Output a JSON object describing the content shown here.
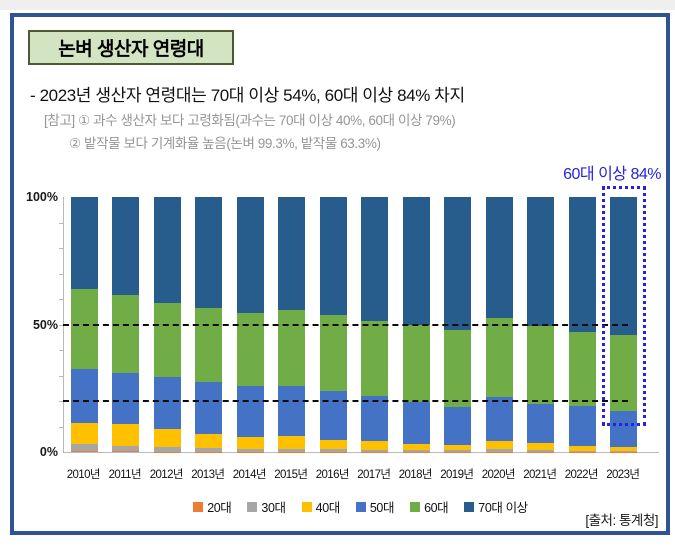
{
  "header": {
    "title": "논벼 생산자 연령대",
    "bullet": "- 2023년 생산자 연령대는 70대 이상 54%, 60대 이상 84% 차지",
    "note1": "[참고] ① 과수 생산자 보다 고령화됨(과수는 70대 이상 40%, 60대 이상 79%)",
    "note2": "② 밭작물 보다 기계화율 높음(논벼 99.3%, 밭작물 63.3%)"
  },
  "annotation": {
    "label": "60대 이상 84%",
    "color": "#2323E0"
  },
  "source": "[출처: 통계청]",
  "colors": {
    "frame_border": "#2F5496",
    "title_fill": "#D3E4C2",
    "title_border": "#4A5A33",
    "highlight_box": "#2323E6"
  },
  "chart_data": {
    "type": "bar",
    "stacked": true,
    "title": "",
    "xlabel": "",
    "ylabel": "",
    "ylim": [
      0,
      100
    ],
    "yticks": [
      {
        "label": "100%",
        "value": 100
      },
      {
        "label": "50%",
        "value": 50
      },
      {
        "label": "0%",
        "value": 0
      }
    ],
    "reference_lines_dashed": [
      50,
      20
    ],
    "legend_position": "bottom",
    "highlight": {
      "category": "2023년",
      "note": "60대 이상 84%"
    },
    "categories": [
      "2010년",
      "2011년",
      "2012년",
      "2013년",
      "2014년",
      "2015년",
      "2016년",
      "2017년",
      "2018년",
      "2019년",
      "2020년",
      "2021년",
      "2022년",
      "2023년"
    ],
    "series": [
      {
        "name": "20대",
        "color": "#ED7D31",
        "values": [
          0.4,
          0.3,
          0.2,
          0.2,
          0.1,
          0.1,
          0.1,
          0.1,
          0.1,
          0.1,
          0.2,
          0.1,
          0.1,
          0.1
        ]
      },
      {
        "name": "30대",
        "color": "#A6A6A6",
        "values": [
          2.8,
          2.2,
          1.6,
          1.4,
          1.0,
          1.1,
          0.9,
          0.7,
          0.6,
          0.5,
          0.8,
          0.6,
          0.4,
          0.3
        ]
      },
      {
        "name": "40대",
        "color": "#FFC000",
        "values": [
          8.3,
          8.6,
          7.4,
          5.6,
          4.8,
          5.0,
          3.6,
          3.5,
          2.6,
          2.3,
          3.3,
          3.0,
          1.7,
          1.4
        ]
      },
      {
        "name": "50대",
        "color": "#4472C4",
        "values": [
          21.2,
          20.0,
          20.2,
          20.3,
          20.1,
          19.8,
          19.4,
          17.7,
          16.2,
          14.6,
          17.2,
          15.3,
          15.8,
          14.2
        ]
      },
      {
        "name": "60대",
        "color": "#70AD47",
        "values": [
          31.1,
          30.4,
          29.2,
          29.0,
          28.7,
          29.6,
          29.9,
          29.4,
          30.2,
          30.2,
          31.0,
          30.3,
          29.1,
          30.0
        ]
      },
      {
        "name": "70대 이상",
        "color": "#275D8C",
        "values": [
          36.2,
          38.5,
          41.4,
          43.5,
          45.3,
          44.4,
          46.1,
          48.6,
          50.3,
          52.3,
          47.5,
          50.7,
          52.9,
          54.0
        ]
      }
    ]
  }
}
